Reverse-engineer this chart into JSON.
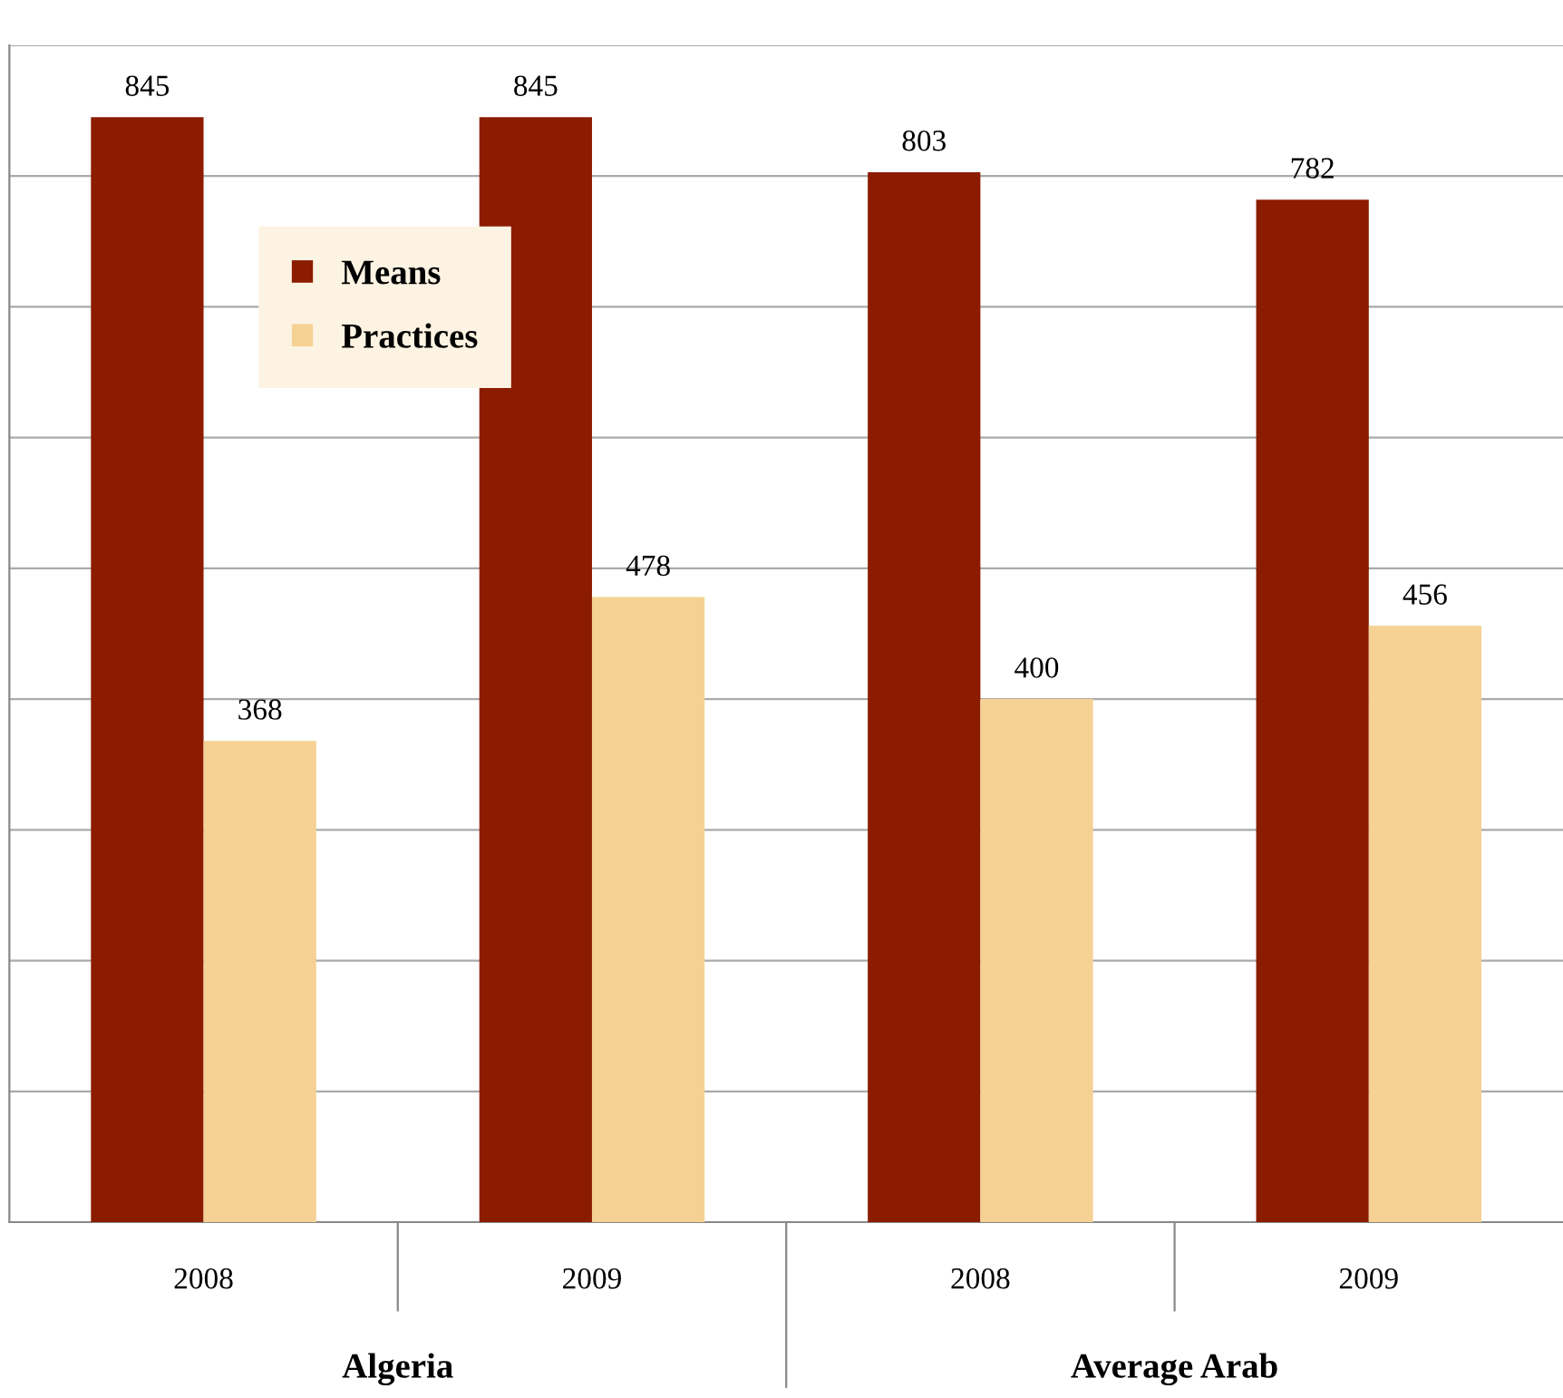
{
  "chart_data": {
    "type": "bar",
    "categories": [
      "2008",
      "2009",
      "2008",
      "2009"
    ],
    "series": [
      {
        "name": "Means",
        "color": "#8b1c00",
        "values": [
          845,
          845,
          803,
          782
        ]
      },
      {
        "name": "Practices",
        "color": "#f5d194",
        "values": [
          368,
          478,
          400,
          456
        ]
      }
    ],
    "data_labels": true,
    "ylim": [
      0,
      900
    ],
    "yticks": [
      {
        "value": 0,
        "label": null
      },
      {
        "value": 100,
        "label": null
      },
      {
        "value": 200,
        "label": null
      },
      {
        "value": 300,
        "label": null
      },
      {
        "value": 400,
        "label": null
      },
      {
        "value": 500,
        "label": null
      },
      {
        "value": 600,
        "label": null
      },
      {
        "value": 700,
        "label": null
      },
      {
        "value": 800,
        "label": null
      },
      {
        "value": 900,
        "label": null
      }
    ],
    "tick_labels": "x",
    "grid": "y",
    "legend": "top left",
    "annotations": [
      "Algeria",
      "Average Arab"
    ]
  }
}
